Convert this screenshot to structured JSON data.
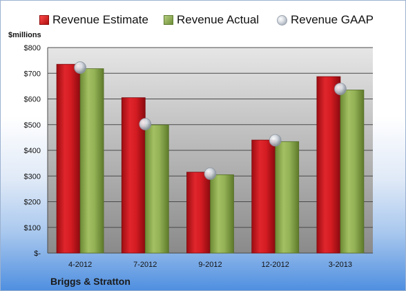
{
  "legend": {
    "estimate": "Revenue Estimate",
    "actual": "Revenue Actual",
    "gaap": "Revenue GAAP"
  },
  "unit_label": "$millions",
  "company": "Briggs & Stratton",
  "colors": {
    "estimate": "#c4161c",
    "actual": "#8cab4f",
    "gaap": "#c8ced6",
    "plot_top": "#e4e4e4",
    "plot_bottom": "#8c8c8c"
  },
  "chart_data": {
    "type": "bar",
    "categories": [
      "4-2012",
      "7-2012",
      "9-2012",
      "12-2012",
      "3-2013"
    ],
    "series": [
      {
        "name": "Revenue Estimate",
        "kind": "bar",
        "values": [
          735,
          605,
          315,
          440,
          687
        ]
      },
      {
        "name": "Revenue Actual",
        "kind": "bar",
        "values": [
          718,
          499,
          305,
          434,
          635
        ]
      },
      {
        "name": "Revenue GAAP",
        "kind": "marker",
        "values": [
          722,
          502,
          309,
          439,
          639
        ]
      }
    ],
    "ylim": [
      0,
      800
    ],
    "yticks": [
      0,
      100,
      200,
      300,
      400,
      500,
      600,
      700,
      800
    ],
    "ytick_labels": [
      "$-",
      "$100",
      "$200",
      "$300",
      "$400",
      "$500",
      "$600",
      "$700",
      "$800"
    ],
    "ylabel": "$millions",
    "xlabel": "",
    "grid": true,
    "legend_position": "top"
  }
}
